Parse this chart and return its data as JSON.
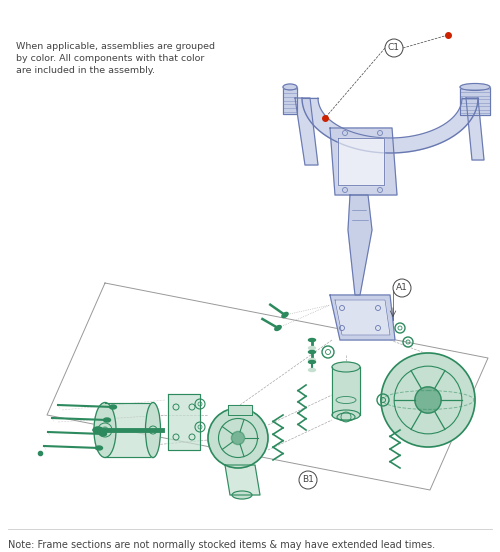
{
  "bg_color": "#ffffff",
  "top_text_line1": "When applicable, assemblies are grouped",
  "top_text_line2": "by color. All components with that color",
  "top_text_line3": "are included in the assembly.",
  "bottom_note": "Note: Frame sections are not normally stocked items & may have extended lead times.",
  "label_A1": "A1",
  "label_B1": "B1",
  "label_C1": "C1",
  "blue_color": "#6878b0",
  "blue_fill": "#c8d0e8",
  "green_color": "#2d8a5e",
  "green_fill": "#c5e0d0",
  "red_color": "#cc2200",
  "text_color": "#444444",
  "line_color": "#aaaaaa",
  "figsize": [
    5.0,
    5.52
  ],
  "dpi": 100
}
